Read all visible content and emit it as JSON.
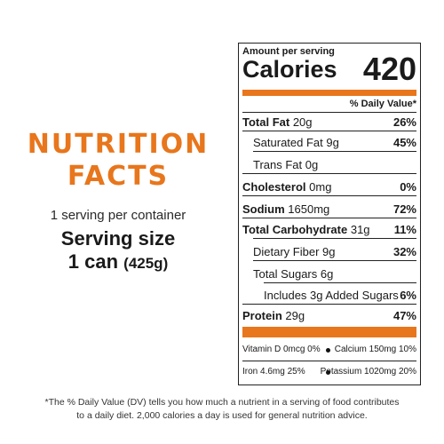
{
  "heading": {
    "line1": "NUTRITION",
    "line2": "FACTS"
  },
  "serving": {
    "per_container": "1 serving per container",
    "size_label": "Serving size",
    "size_amount": "1 can",
    "size_grams": "(425g)"
  },
  "label": {
    "amount_per_serving": "Amount per serving",
    "calories_label": "Calories",
    "calories_value": "420",
    "daily_value_header": "% Daily Value*",
    "nutrients": [
      {
        "name": "Total Fat",
        "amount": "20g",
        "dv": "26%"
      },
      {
        "name": "Saturated Fat",
        "amount": "9g",
        "dv": "45%"
      },
      {
        "name": "Trans Fat",
        "amount": "0g",
        "dv": ""
      },
      {
        "name": "Cholesterol",
        "amount": "0mg",
        "dv": "0%"
      },
      {
        "name": "Sodium",
        "amount": "1650mg",
        "dv": "72%"
      },
      {
        "name": "Total Carbohydrate",
        "amount": "31g",
        "dv": "11%"
      },
      {
        "name": "Dietary Fiber",
        "amount": "9g",
        "dv": "32%"
      },
      {
        "name": "Total Sugars",
        "amount": "6g",
        "dv": ""
      },
      {
        "name": "Includes 3g Added Sugars",
        "amount": "",
        "dv": "6%"
      },
      {
        "name": "Protein",
        "amount": "29g",
        "dv": "47%"
      }
    ],
    "micros": [
      {
        "text": "Vitamin D 0mcg 0%"
      },
      {
        "text": "Calcium 150mg 10%"
      },
      {
        "text": "Iron 4.6mg 25%"
      },
      {
        "text": "Potassium 1020mg 20%"
      }
    ]
  },
  "footnote": {
    "line1": "*The % Daily Value (DV) tells you how much a nutrient in a serving of food contributes",
    "line2": "to a daily diet. 2,000 calories a day is used for general nutrition advice."
  },
  "colors": {
    "accent": "#e8761c",
    "text": "#1a1a1a"
  }
}
